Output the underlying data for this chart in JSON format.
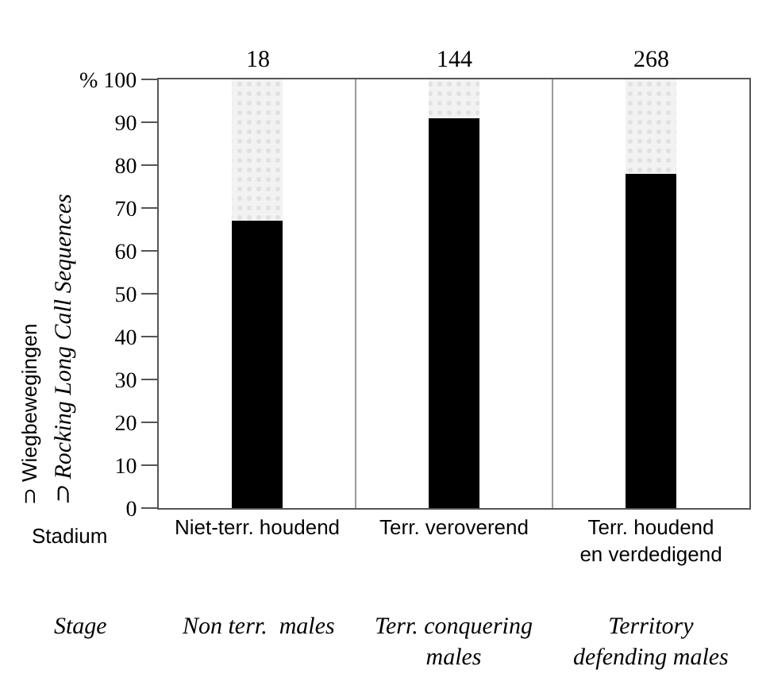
{
  "chart_data": {
    "type": "bar",
    "stacked": true,
    "categories": [
      "Niet-terr. houdend",
      "Terr. veroverend",
      "Terr. houdend\nen verdedigend"
    ],
    "series": [
      {
        "color": "#000000",
        "values": [
          67,
          91,
          78
        ]
      },
      {
        "color": "#f2f2f2",
        "values": [
          33,
          9,
          22
        ]
      }
    ],
    "ylabel": "⊃ Wiegbewegingen\n⊃ Rocking Long Call Sequences",
    "ylim": [
      0,
      100
    ],
    "yticks": [
      0,
      10,
      20,
      30,
      40,
      50,
      60,
      70,
      80,
      90,
      {
        "value": 100,
        "label": "% 100"
      }
    ],
    "grid": "x",
    "annotations": [
      "18",
      "144",
      "268",
      "Stadium",
      "Stage",
      "Non terr.  males",
      "Terr. conquering\nmales",
      "Territory\ndefending males"
    ]
  }
}
